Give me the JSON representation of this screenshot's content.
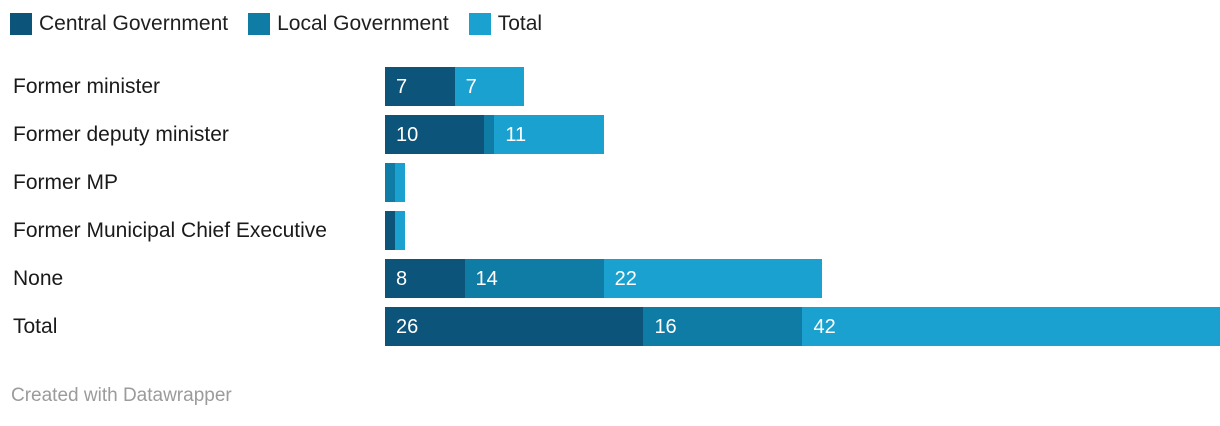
{
  "legend": {
    "position": "top",
    "items": [
      {
        "label": "Central Government",
        "color": "#0c5479"
      },
      {
        "label": "Local Government",
        "color": "#0f7ca6"
      },
      {
        "label": "Total",
        "color": "#1aa1cf"
      }
    ]
  },
  "chart_data": {
    "type": "bar",
    "orientation": "horizontal",
    "stacked": true,
    "title": "",
    "xlabel": "",
    "ylabel": "",
    "grid": false,
    "legend_position": "top",
    "value_labels": "inside-left",
    "min_label_value": 2,
    "xlim": [
      0,
      84
    ],
    "categories": [
      "Former minister",
      "Former deputy minister",
      "Former MP",
      "Former Municipal Chief Executive",
      "None",
      "Total"
    ],
    "series": [
      {
        "name": "Central Government",
        "color": "#0c5479",
        "values": [
          7,
          10,
          0,
          1,
          8,
          26
        ]
      },
      {
        "name": "Local Government",
        "color": "#0f7ca6",
        "values": [
          0,
          1,
          1,
          0,
          14,
          16
        ]
      },
      {
        "name": "Total",
        "color": "#1aa1cf",
        "values": [
          7,
          11,
          1,
          1,
          22,
          42
        ]
      }
    ]
  },
  "footer": {
    "attribution": "Created with Datawrapper"
  }
}
